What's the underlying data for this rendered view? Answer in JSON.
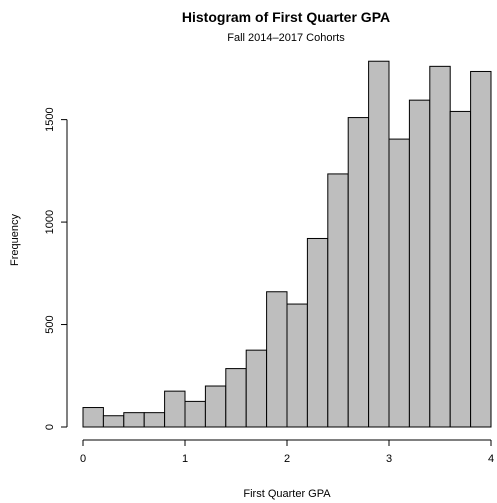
{
  "chart_data": {
    "type": "bar",
    "title": "Histogram of First Quarter GPA",
    "subtitle": "Fall 2014–2017 Cohorts",
    "xlabel": "First Quarter GPA",
    "ylabel": "Frequency",
    "bin_edges": [
      0.0,
      0.2,
      0.4,
      0.6,
      0.8,
      1.0,
      1.2,
      1.4,
      1.6,
      1.8,
      2.0,
      2.2,
      2.4,
      2.6,
      2.8,
      3.0,
      3.2,
      3.4,
      3.6,
      3.8,
      4.0
    ],
    "values": [
      95,
      55,
      70,
      70,
      175,
      125,
      200,
      285,
      375,
      660,
      600,
      920,
      1235,
      1510,
      1785,
      1405,
      1595,
      1760,
      1540,
      1735
    ],
    "xlim": [
      0,
      4
    ],
    "ylim": [
      0,
      1830
    ],
    "xticks": [
      0,
      1,
      2,
      3,
      4
    ],
    "xtick_labels": [
      "0",
      "1",
      "2",
      "3",
      "4"
    ],
    "yticks": [
      0,
      500,
      1000,
      1500
    ],
    "ytick_labels": [
      "0",
      "500",
      "1000",
      "1500"
    ],
    "colors": {
      "bar_fill": "#bebebe",
      "bar_stroke": "#000000"
    },
    "grid": false,
    "legend": "none"
  }
}
